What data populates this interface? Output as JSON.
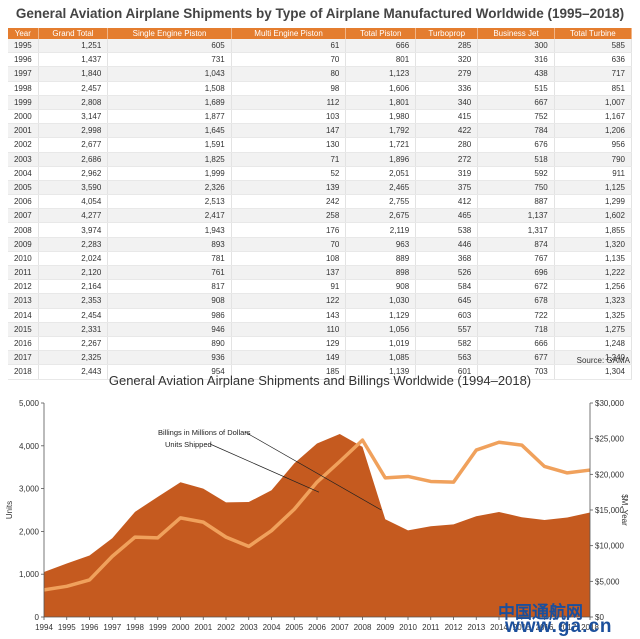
{
  "table": {
    "title": "General Aviation Airplane Shipments by Type of Airplane Manufactured Worldwide (1995–2018)",
    "headers": [
      "Year",
      "Grand Total",
      "Single Engine Piston",
      "Multi Engine Piston",
      "Total Piston",
      "Turboprop",
      "Business Jet",
      "Total Turbine"
    ],
    "rows": [
      [
        "1995",
        "1,251",
        "605",
        "61",
        "666",
        "285",
        "300",
        "585"
      ],
      [
        "1996",
        "1,437",
        "731",
        "70",
        "801",
        "320",
        "316",
        "636"
      ],
      [
        "1997",
        "1,840",
        "1,043",
        "80",
        "1,123",
        "279",
        "438",
        "717"
      ],
      [
        "1998",
        "2,457",
        "1,508",
        "98",
        "1,606",
        "336",
        "515",
        "851"
      ],
      [
        "1999",
        "2,808",
        "1,689",
        "112",
        "1,801",
        "340",
        "667",
        "1,007"
      ],
      [
        "2000",
        "3,147",
        "1,877",
        "103",
        "1,980",
        "415",
        "752",
        "1,167"
      ],
      [
        "2001",
        "2,998",
        "1,645",
        "147",
        "1,792",
        "422",
        "784",
        "1,206"
      ],
      [
        "2002",
        "2,677",
        "1,591",
        "130",
        "1,721",
        "280",
        "676",
        "956"
      ],
      [
        "2003",
        "2,686",
        "1,825",
        "71",
        "1,896",
        "272",
        "518",
        "790"
      ],
      [
        "2004",
        "2,962",
        "1,999",
        "52",
        "2,051",
        "319",
        "592",
        "911"
      ],
      [
        "2005",
        "3,590",
        "2,326",
        "139",
        "2,465",
        "375",
        "750",
        "1,125"
      ],
      [
        "2006",
        "4,054",
        "2,513",
        "242",
        "2,755",
        "412",
        "887",
        "1,299"
      ],
      [
        "2007",
        "4,277",
        "2,417",
        "258",
        "2,675",
        "465",
        "1,137",
        "1,602"
      ],
      [
        "2008",
        "3,974",
        "1,943",
        "176",
        "2,119",
        "538",
        "1,317",
        "1,855"
      ],
      [
        "2009",
        "2,283",
        "893",
        "70",
        "963",
        "446",
        "874",
        "1,320"
      ],
      [
        "2010",
        "2,024",
        "781",
        "108",
        "889",
        "368",
        "767",
        "1,135"
      ],
      [
        "2011",
        "2,120",
        "761",
        "137",
        "898",
        "526",
        "696",
        "1,222"
      ],
      [
        "2012",
        "2,164",
        "817",
        "91",
        "908",
        "584",
        "672",
        "1,256"
      ],
      [
        "2013",
        "2,353",
        "908",
        "122",
        "1,030",
        "645",
        "678",
        "1,323"
      ],
      [
        "2014",
        "2,454",
        "986",
        "143",
        "1,129",
        "603",
        "722",
        "1,325"
      ],
      [
        "2015",
        "2,331",
        "946",
        "110",
        "1,056",
        "557",
        "718",
        "1,275"
      ],
      [
        "2016",
        "2,267",
        "890",
        "129",
        "1,019",
        "582",
        "666",
        "1,248"
      ],
      [
        "2017",
        "2,325",
        "936",
        "149",
        "1,085",
        "563",
        "677",
        "1,240"
      ],
      [
        "2018",
        "2,443",
        "954",
        "185",
        "1,139",
        "601",
        "703",
        "1,304"
      ]
    ],
    "source": "Source: GAMA"
  },
  "chart_data": {
    "type": "area",
    "title": "General Aviation Airplane Shipments and Billings Worldwide (1994–2018)",
    "x": [
      1994,
      1995,
      1996,
      1997,
      1998,
      1999,
      2000,
      2001,
      2002,
      2003,
      2004,
      2005,
      2006,
      2007,
      2008,
      2009,
      2010,
      2011,
      2012,
      2013,
      2014,
      2015,
      2016,
      2017,
      2018
    ],
    "x_tick_labels": [
      "1994",
      "1995",
      "1996",
      "1997",
      "1998",
      "1999",
      "2000",
      "2001",
      "2002",
      "2003",
      "2004",
      "2005",
      "2006",
      "2007",
      "2008",
      "2009",
      "2010",
      "2011",
      "2012",
      "2013",
      "2014",
      "2015",
      "2016",
      "2017",
      "2018"
    ],
    "series": [
      {
        "name": "Units Shipped",
        "axis": "left",
        "style": "area",
        "values": [
          1050,
          1251,
          1437,
          1840,
          2457,
          2808,
          3147,
          2998,
          2677,
          2686,
          2962,
          3590,
          4054,
          4277,
          3974,
          2283,
          2024,
          2120,
          2164,
          2353,
          2454,
          2331,
          2267,
          2325,
          2443
        ]
      },
      {
        "name": "Billings in Millions of Dollars",
        "axis": "right",
        "style": "line",
        "values": [
          3800,
          4300,
          5200,
          8500,
          11200,
          11100,
          13900,
          13300,
          11200,
          9900,
          12100,
          15100,
          18900,
          21800,
          24800,
          19500,
          19700,
          19000,
          18900,
          23400,
          24500,
          24100,
          21100,
          20200,
          20600
        ]
      }
    ],
    "ylabel_left": "Units",
    "ylabel_right": "$M, Year",
    "ylim_left": [
      0,
      5000
    ],
    "yticks_left": [
      "0",
      "1,000",
      "2,000",
      "3,000",
      "4,000",
      "5,000"
    ],
    "ylim_right": [
      0,
      30000
    ],
    "yticks_right": [
      "$0",
      "$5,000",
      "$10,000",
      "$15,000",
      "$20,000",
      "$25,000",
      "$30,000"
    ],
    "grid": false,
    "colors": {
      "area": "#c55a1f",
      "line": "#f0a15c",
      "header": "#e47d2f"
    }
  },
  "watermark": {
    "line1": "中国通航网",
    "line2": "www.ga.cn"
  }
}
